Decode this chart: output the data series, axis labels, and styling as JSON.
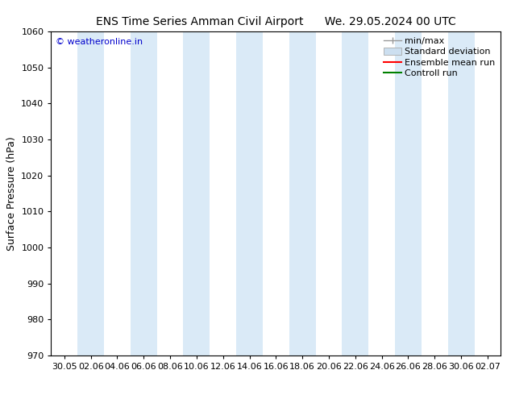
{
  "title_left": "ENS Time Series Amman Civil Airport",
  "title_right": "We. 29.05.2024 00 UTC",
  "ylabel": "Surface Pressure (hPa)",
  "ylim": [
    970,
    1060
  ],
  "yticks": [
    970,
    980,
    990,
    1000,
    1010,
    1020,
    1030,
    1040,
    1050,
    1060
  ],
  "x_tick_labels": [
    "30.05",
    "02.06",
    "04.06",
    "06.06",
    "08.06",
    "10.06",
    "12.06",
    "14.06",
    "16.06",
    "18.06",
    "20.06",
    "22.06",
    "24.06",
    "26.06",
    "28.06",
    "30.06",
    "02.07"
  ],
  "watermark": "© weatheronline.in",
  "watermark_color": "#0000cc",
  "background_color": "#ffffff",
  "plot_bg_color": "#ffffff",
  "band_color": "#daeaf7",
  "band_indices": [
    1,
    3,
    5,
    7,
    9,
    11,
    13,
    15
  ],
  "legend_items": [
    {
      "label": "min/max",
      "color": "#aaaaaa",
      "style": "errorbar"
    },
    {
      "label": "Standard deviation",
      "color": "#ccdff0",
      "style": "rect"
    },
    {
      "label": "Ensemble mean run",
      "color": "#ff0000",
      "style": "line"
    },
    {
      "label": "Controll run",
      "color": "#008000",
      "style": "line"
    }
  ],
  "title_fontsize": 10,
  "axis_label_fontsize": 9,
  "tick_fontsize": 8,
  "legend_fontsize": 8
}
